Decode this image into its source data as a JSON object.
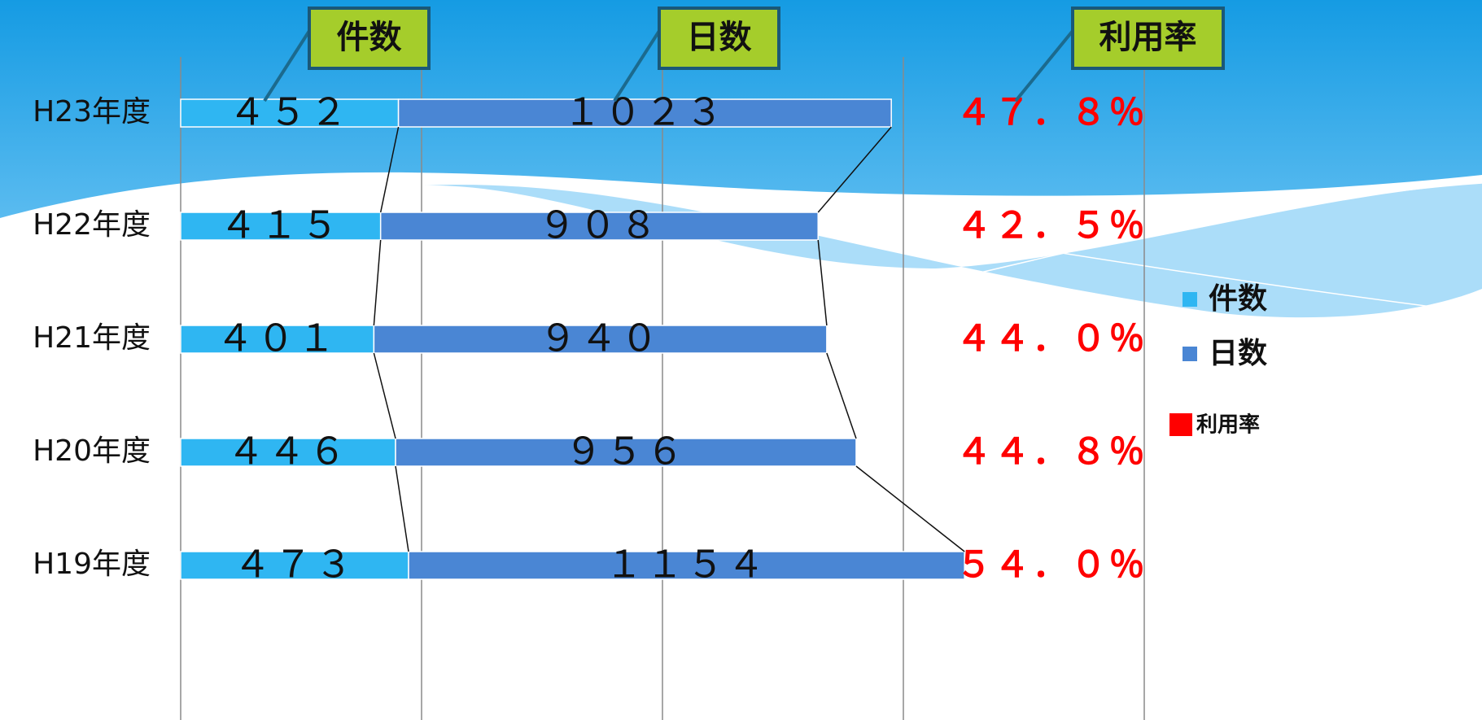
{
  "chart_data": {
    "type": "bar",
    "orientation": "horizontal",
    "stacked": true,
    "categories": [
      "H23年度",
      "H22年度",
      "H21年度",
      "H20年度",
      "H19年度"
    ],
    "series": [
      {
        "name": "件数",
        "color": "#2fb6f2",
        "values": [
          452,
          415,
          401,
          446,
          473
        ],
        "value_labels": [
          "４５２",
          "４１５",
          "４０１",
          "４４６",
          "４７３"
        ]
      },
      {
        "name": "日数",
        "color": "#4a86d4",
        "values": [
          1023,
          908,
          940,
          956,
          1154
        ],
        "value_labels": [
          "１０２３",
          "９０８",
          "９４０",
          "９５６",
          "１１５４"
        ]
      },
      {
        "name": "利用率",
        "color": "#ff0000",
        "type": "label",
        "values": [
          47.8,
          42.5,
          44.0,
          44.8,
          54.0
        ],
        "value_labels": [
          "４７．８％",
          "４２．５％",
          "４４．０％",
          "４４．８％",
          "５４．０％"
        ]
      }
    ],
    "xlim": [
      0,
      2000
    ],
    "xticks": [
      0,
      500,
      1000,
      1500,
      2000
    ],
    "grid": true,
    "legend": "right",
    "annotations": [
      {
        "text": "件数"
      },
      {
        "text": "日数"
      },
      {
        "text": "利用率"
      }
    ]
  }
}
